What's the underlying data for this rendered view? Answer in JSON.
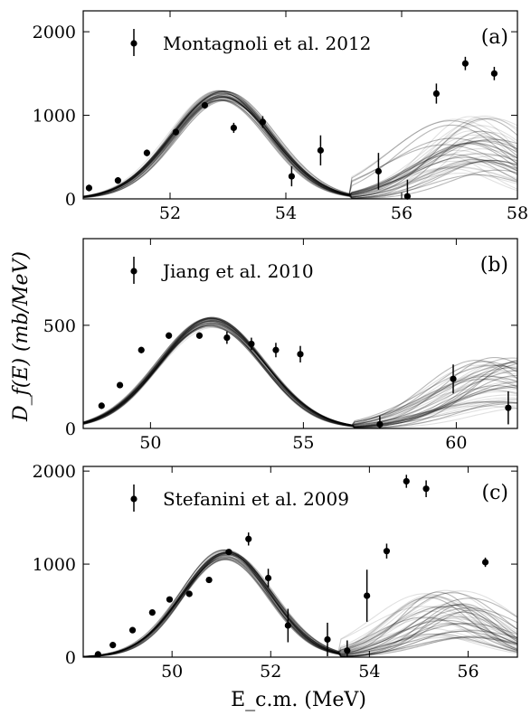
{
  "figure": {
    "ylabel": "D_f(E) (mb/MeV)",
    "xlabel": "E_c.m. (MeV)"
  },
  "chart_data": [
    {
      "panel": "(a)",
      "type": "scatter",
      "legend": "Montagnoli et al. 2012",
      "xlim": [
        50.5,
        58
      ],
      "ylim": [
        0,
        2250
      ],
      "xticks": [
        52,
        54,
        56,
        58
      ],
      "yticks": [
        0,
        1000,
        2000
      ],
      "points": [
        {
          "x": 50.6,
          "y": 130,
          "err": 40
        },
        {
          "x": 51.1,
          "y": 220,
          "err": 40
        },
        {
          "x": 51.6,
          "y": 550,
          "err": 40
        },
        {
          "x": 52.1,
          "y": 800,
          "err": 40
        },
        {
          "x": 52.6,
          "y": 1120,
          "err": 40
        },
        {
          "x": 53.1,
          "y": 850,
          "err": 60
        },
        {
          "x": 53.6,
          "y": 920,
          "err": 70
        },
        {
          "x": 54.1,
          "y": 270,
          "err": 120
        },
        {
          "x": 54.6,
          "y": 580,
          "err": 180
        },
        {
          "x": 55.6,
          "y": 330,
          "err": 220
        },
        {
          "x": 56.1,
          "y": 30,
          "err": 200
        },
        {
          "x": 56.6,
          "y": 1260,
          "err": 120
        },
        {
          "x": 57.1,
          "y": 1620,
          "err": 80
        },
        {
          "x": 57.6,
          "y": 1500,
          "err": 80
        }
      ],
      "band": {
        "peak1_x": 52.9,
        "peak1_y": 1250,
        "sigma1": 0.85,
        "zero_x": 55.1,
        "peak2_x": 57.2,
        "peak2_y": 820,
        "sigma2": 0.9
      }
    },
    {
      "panel": "(b)",
      "type": "scatter",
      "legend": "Jiang et al. 2010",
      "xlim": [
        47.8,
        62
      ],
      "ylim": [
        0,
        920
      ],
      "xticks": [
        50,
        55,
        60
      ],
      "yticks": [
        0,
        500
      ],
      "points": [
        {
          "x": 48.4,
          "y": 110,
          "err": 15
        },
        {
          "x": 49.0,
          "y": 210,
          "err": 15
        },
        {
          "x": 49.7,
          "y": 380,
          "err": 15
        },
        {
          "x": 50.6,
          "y": 450,
          "err": 15
        },
        {
          "x": 51.6,
          "y": 450,
          "err": 15
        },
        {
          "x": 52.5,
          "y": 440,
          "err": 30
        },
        {
          "x": 53.3,
          "y": 410,
          "err": 30
        },
        {
          "x": 54.1,
          "y": 380,
          "err": 35
        },
        {
          "x": 54.9,
          "y": 360,
          "err": 40
        },
        {
          "x": 57.5,
          "y": 20,
          "err": 40
        },
        {
          "x": 59.9,
          "y": 240,
          "err": 70
        },
        {
          "x": 61.7,
          "y": 100,
          "err": 80
        }
      ],
      "band": {
        "peak1_x": 52.0,
        "peak1_y": 520,
        "sigma1": 1.7,
        "zero_x": 56.6,
        "peak2_x": 61.5,
        "peak2_y": 280,
        "sigma2": 2.0
      }
    },
    {
      "panel": "(c)",
      "type": "scatter",
      "legend": "Stefanini et al. 2009",
      "xlim": [
        48.2,
        57
      ],
      "ylim": [
        0,
        2050
      ],
      "xticks": [
        50,
        52,
        54,
        56
      ],
      "yticks": [
        0,
        1000,
        2000
      ],
      "points": [
        {
          "x": 48.5,
          "y": 30,
          "err": 20
        },
        {
          "x": 48.8,
          "y": 130,
          "err": 20
        },
        {
          "x": 49.2,
          "y": 290,
          "err": 20
        },
        {
          "x": 49.6,
          "y": 480,
          "err": 20
        },
        {
          "x": 49.95,
          "y": 620,
          "err": 20
        },
        {
          "x": 50.35,
          "y": 680,
          "err": 20
        },
        {
          "x": 50.75,
          "y": 830,
          "err": 25
        },
        {
          "x": 51.15,
          "y": 1130,
          "err": 30
        },
        {
          "x": 51.55,
          "y": 1270,
          "err": 70
        },
        {
          "x": 51.95,
          "y": 850,
          "err": 100
        },
        {
          "x": 52.35,
          "y": 340,
          "err": 180
        },
        {
          "x": 53.15,
          "y": 190,
          "err": 180
        },
        {
          "x": 53.55,
          "y": 70,
          "err": 110
        },
        {
          "x": 53.95,
          "y": 660,
          "err": 280
        },
        {
          "x": 54.35,
          "y": 1140,
          "err": 80
        },
        {
          "x": 54.75,
          "y": 1890,
          "err": 70
        },
        {
          "x": 55.15,
          "y": 1810,
          "err": 90
        },
        {
          "x": 56.35,
          "y": 1020,
          "err": 50
        }
      ],
      "band": {
        "peak1_x": 51.1,
        "peak1_y": 1110,
        "sigma1": 0.9,
        "zero_x": 53.4,
        "peak2_x": 55.6,
        "peak2_y": 580,
        "sigma2": 0.95
      }
    }
  ]
}
